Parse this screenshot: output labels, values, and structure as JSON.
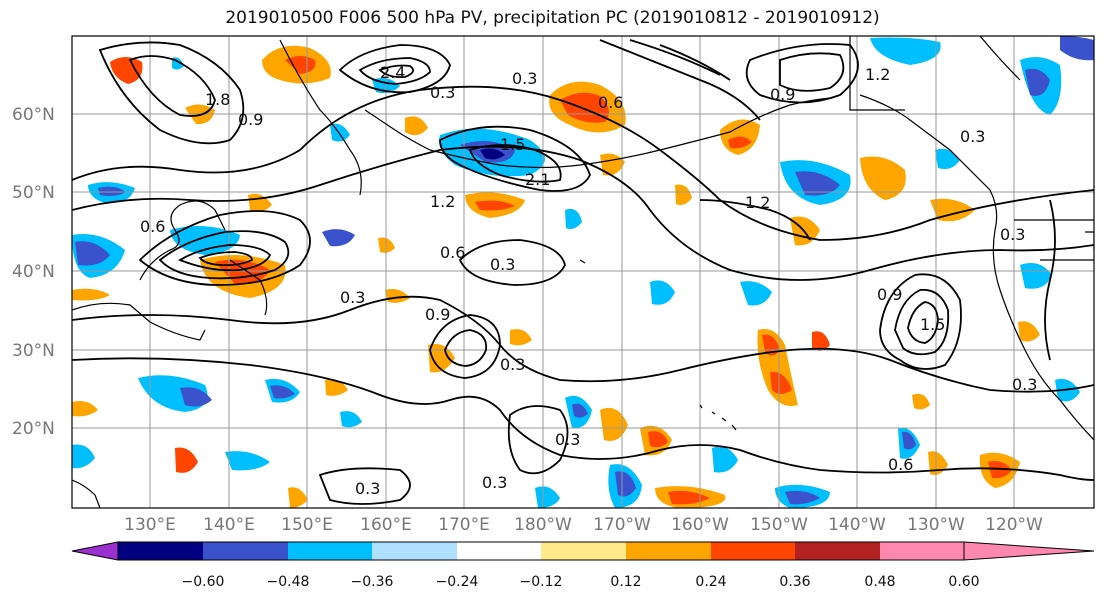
{
  "title": "2019010500 F006 500 hPa PV, precipitation PC (2019010812 - 2019010912)",
  "lat_ticks": [
    "60°N",
    "50°N",
    "40°N",
    "30°N",
    "20°N"
  ],
  "lon_ticks": [
    "130°E",
    "140°E",
    "150°E",
    "160°E",
    "170°E",
    "180°W",
    "170°W",
    "160°W",
    "150°W",
    "140°W",
    "130°W",
    "120°W"
  ],
  "contour_labels": [
    "1.8",
    "0.9",
    "0.6",
    "2.4",
    "0.3",
    "1.5",
    "0.6",
    "1.2",
    "2.1",
    "0.6",
    "0.3",
    "0.3",
    "0.9",
    "1.2",
    "0.3",
    "0.9",
    "0.3",
    "1.5",
    "0.9",
    "0.3",
    "0.3",
    "0.6",
    "0.3",
    "0.3",
    "0.3",
    "1.2",
    "0.3"
  ],
  "colorbar": {
    "colors": [
      "#9b30d0",
      "#000080",
      "#3a52cc",
      "#00bfff",
      "#b0e0ff",
      "#ffffff",
      "#ffe98a",
      "#ffa500",
      "#ff4500",
      "#b22222",
      "#ff88b0"
    ],
    "labels": [
      "−0.60",
      "−0.48",
      "−0.36",
      "−0.24",
      "−0.12",
      "0.12",
      "0.24",
      "0.36",
      "0.48",
      "0.60"
    ]
  }
}
